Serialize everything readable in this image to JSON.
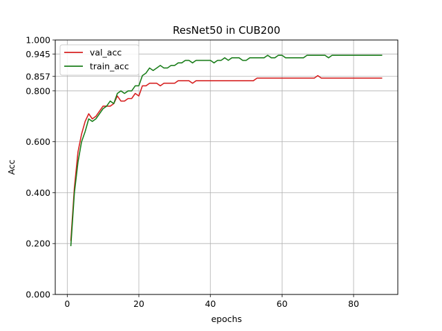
{
  "chart_data": {
    "type": "line",
    "title": "ResNet50 in CUB200",
    "xlabel": "epochs",
    "ylabel": "Acc",
    "xlim": [
      -3.35,
      92.35
    ],
    "ylim": [
      0.0,
      1.0
    ],
    "xticks": [
      0,
      20,
      40,
      60,
      80
    ],
    "yticks": [
      0.0,
      0.2,
      0.4,
      0.6,
      0.8,
      0.857,
      0.945,
      1.0
    ],
    "ytick_labels": [
      "0.000",
      "0.200",
      "0.400",
      "0.600",
      "0.800",
      "0.857",
      "0.945",
      "1.000"
    ],
    "grid": true,
    "legend_position": "top-left",
    "colors": {
      "val_acc": "#d62020",
      "train_acc": "#1a7d1a"
    },
    "x": [
      1,
      2,
      3,
      4,
      5,
      6,
      7,
      8,
      9,
      10,
      11,
      12,
      13,
      14,
      15,
      16,
      17,
      18,
      19,
      20,
      21,
      22,
      23,
      24,
      25,
      26,
      27,
      28,
      29,
      30,
      31,
      32,
      33,
      34,
      35,
      36,
      37,
      38,
      39,
      40,
      41,
      42,
      43,
      44,
      45,
      46,
      47,
      48,
      49,
      50,
      51,
      52,
      53,
      54,
      55,
      56,
      57,
      58,
      59,
      60,
      61,
      62,
      63,
      64,
      65,
      66,
      67,
      68,
      69,
      70,
      71,
      72,
      73,
      74,
      75,
      76,
      77,
      78,
      79,
      80,
      81,
      82,
      83,
      84,
      85,
      86,
      87,
      88
    ],
    "series": [
      {
        "name": "val_acc",
        "values": [
          0.21,
          0.42,
          0.56,
          0.63,
          0.68,
          0.71,
          0.69,
          0.7,
          0.72,
          0.74,
          0.74,
          0.74,
          0.75,
          0.78,
          0.76,
          0.76,
          0.77,
          0.77,
          0.79,
          0.78,
          0.82,
          0.82,
          0.83,
          0.83,
          0.83,
          0.82,
          0.83,
          0.83,
          0.83,
          0.83,
          0.84,
          0.84,
          0.84,
          0.84,
          0.83,
          0.84,
          0.84,
          0.84,
          0.84,
          0.84,
          0.84,
          0.84,
          0.84,
          0.84,
          0.84,
          0.84,
          0.84,
          0.84,
          0.84,
          0.84,
          0.84,
          0.84,
          0.85,
          0.85,
          0.85,
          0.85,
          0.85,
          0.85,
          0.85,
          0.85,
          0.85,
          0.85,
          0.85,
          0.85,
          0.85,
          0.85,
          0.85,
          0.85,
          0.85,
          0.86,
          0.85,
          0.85,
          0.85,
          0.85,
          0.85,
          0.85,
          0.85,
          0.85,
          0.85,
          0.85,
          0.85,
          0.85,
          0.85,
          0.85,
          0.85,
          0.85,
          0.85,
          0.85
        ]
      },
      {
        "name": "train_acc",
        "values": [
          0.19,
          0.4,
          0.52,
          0.6,
          0.64,
          0.69,
          0.68,
          0.69,
          0.71,
          0.73,
          0.74,
          0.76,
          0.75,
          0.79,
          0.8,
          0.79,
          0.8,
          0.8,
          0.82,
          0.82,
          0.86,
          0.87,
          0.89,
          0.88,
          0.89,
          0.9,
          0.89,
          0.89,
          0.9,
          0.9,
          0.91,
          0.91,
          0.92,
          0.92,
          0.91,
          0.92,
          0.92,
          0.92,
          0.92,
          0.92,
          0.91,
          0.92,
          0.92,
          0.93,
          0.92,
          0.93,
          0.93,
          0.93,
          0.92,
          0.92,
          0.93,
          0.93,
          0.93,
          0.93,
          0.93,
          0.94,
          0.93,
          0.93,
          0.94,
          0.94,
          0.93,
          0.93,
          0.93,
          0.93,
          0.93,
          0.93,
          0.94,
          0.94,
          0.94,
          0.94,
          0.94,
          0.94,
          0.93,
          0.94,
          0.94,
          0.94,
          0.94,
          0.94,
          0.94,
          0.94,
          0.94,
          0.94,
          0.94,
          0.94,
          0.94,
          0.94,
          0.94,
          0.94
        ]
      }
    ]
  }
}
